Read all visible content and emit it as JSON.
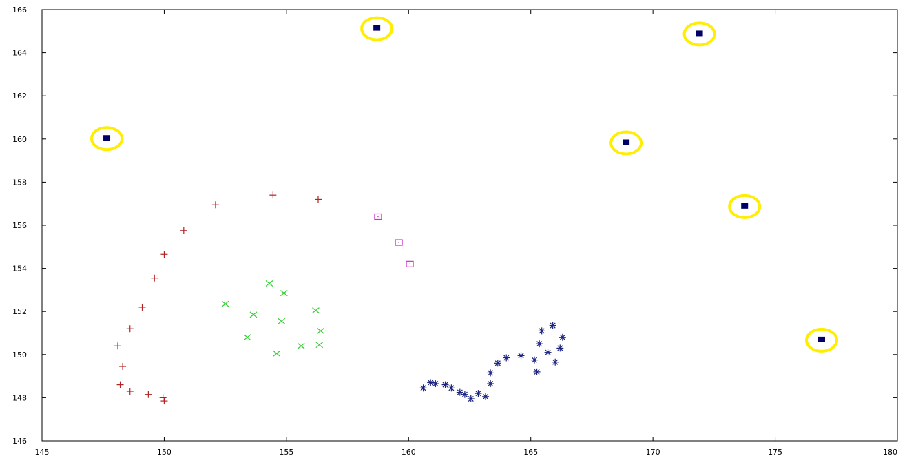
{
  "chart_data": {
    "type": "scatter",
    "title": "",
    "xlabel": "",
    "ylabel": "",
    "xlim": [
      145,
      180
    ],
    "ylim": [
      146,
      166
    ],
    "x_ticks": [
      "145",
      "150",
      "155",
      "160",
      "165",
      "170",
      "175",
      "180"
    ],
    "y_ticks": [
      "146",
      "148",
      "150",
      "152",
      "154",
      "156",
      "158",
      "160",
      "162",
      "164",
      "166"
    ],
    "grid": false,
    "legend": "none",
    "series": [
      {
        "marker": "plus",
        "color": "#b22222",
        "points": [
          [
            152.1,
            156.95
          ],
          [
            154.45,
            157.4
          ],
          [
            156.3,
            157.2
          ],
          [
            150.8,
            155.75
          ],
          [
            150.0,
            154.65
          ],
          [
            149.6,
            153.55
          ],
          [
            149.1,
            152.2
          ],
          [
            148.6,
            151.2
          ],
          [
            148.1,
            150.4
          ],
          [
            148.3,
            149.45
          ],
          [
            148.2,
            148.6
          ],
          [
            148.6,
            148.3
          ],
          [
            149.35,
            148.15
          ],
          [
            149.95,
            148.0
          ],
          [
            150.0,
            147.85
          ]
        ]
      },
      {
        "marker": "cross",
        "color": "#33cc33",
        "points": [
          [
            152.5,
            152.35
          ],
          [
            154.3,
            153.3
          ],
          [
            154.9,
            152.85
          ],
          [
            153.65,
            151.85
          ],
          [
            154.8,
            151.55
          ],
          [
            156.2,
            152.05
          ],
          [
            156.4,
            151.1
          ],
          [
            153.4,
            150.8
          ],
          [
            154.6,
            150.05
          ],
          [
            155.6,
            150.4
          ],
          [
            156.35,
            150.45
          ]
        ]
      },
      {
        "marker": "square-open",
        "color": "#cc33cc",
        "points": [
          [
            158.75,
            156.4
          ],
          [
            159.6,
            155.2
          ],
          [
            160.05,
            154.2
          ]
        ]
      },
      {
        "marker": "asterisk",
        "color": "#1a237e",
        "points": [
          [
            160.6,
            148.45
          ],
          [
            160.9,
            148.7
          ],
          [
            161.1,
            148.65
          ],
          [
            161.5,
            148.6
          ],
          [
            161.75,
            148.45
          ],
          [
            162.1,
            148.25
          ],
          [
            162.3,
            148.15
          ],
          [
            162.55,
            147.95
          ],
          [
            162.85,
            148.2
          ],
          [
            163.15,
            148.05
          ],
          [
            163.35,
            148.65
          ],
          [
            163.35,
            149.15
          ],
          [
            163.65,
            149.6
          ],
          [
            164.0,
            149.85
          ],
          [
            164.6,
            149.95
          ],
          [
            165.15,
            149.75
          ],
          [
            165.25,
            149.2
          ],
          [
            165.35,
            150.5
          ],
          [
            165.45,
            151.1
          ],
          [
            165.7,
            150.1
          ],
          [
            165.9,
            151.35
          ],
          [
            166.0,
            149.65
          ],
          [
            166.2,
            150.3
          ],
          [
            166.3,
            150.8
          ]
        ]
      },
      {
        "marker": "square-filled-circled",
        "color": "#000066",
        "ring_color": "#ffee00",
        "points": [
          [
            147.65,
            160.05
          ],
          [
            158.7,
            165.15
          ],
          [
            171.9,
            164.9
          ],
          [
            168.9,
            159.85
          ],
          [
            173.75,
            156.9
          ],
          [
            176.9,
            150.7
          ]
        ]
      }
    ]
  }
}
